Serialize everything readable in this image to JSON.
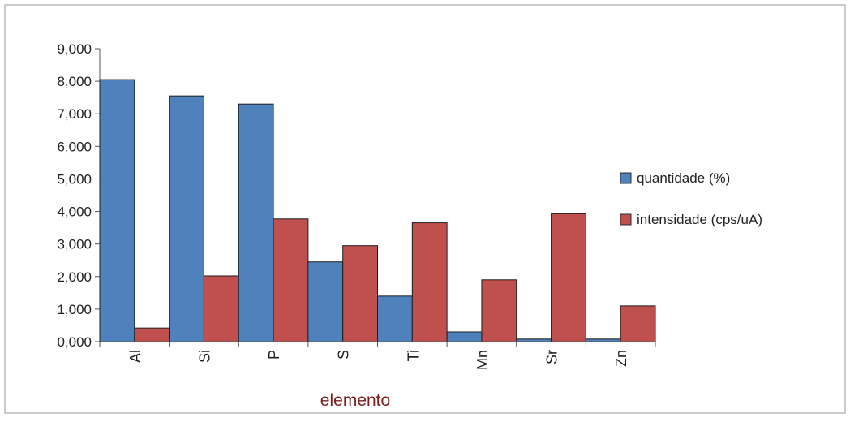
{
  "chart_data": {
    "type": "bar",
    "title": "",
    "xlabel": "elemento",
    "ylabel": "",
    "categories": [
      "Al",
      "Si",
      "P",
      "S",
      "Ti",
      "Mn",
      "Sr",
      "Zn"
    ],
    "series": [
      {
        "name": "quantidade (%)",
        "values": [
          8.05,
          7.55,
          7.3,
          2.45,
          1.4,
          0.3,
          0.08,
          0.08
        ]
      },
      {
        "name": "intensidade (cps/uA)",
        "values": [
          0.42,
          2.02,
          3.77,
          2.95,
          3.65,
          1.9,
          3.93,
          1.1
        ]
      }
    ],
    "ylim": [
      0,
      9
    ],
    "yticks": [
      0,
      1,
      2,
      3,
      4,
      5,
      6,
      7,
      8,
      9
    ],
    "ytick_labels": [
      "0,000",
      "1,000",
      "2,000",
      "3,000",
      "4,000",
      "5,000",
      "6,000",
      "7,000",
      "8,000",
      "9,000"
    ],
    "grid": false,
    "legend": "right",
    "colors": {
      "quantidade": "#4f81bd",
      "intensidade": "#c0504d",
      "xlabel": "#7b1e1e",
      "axis": "#555555",
      "frame": "#9a9a9a"
    }
  }
}
